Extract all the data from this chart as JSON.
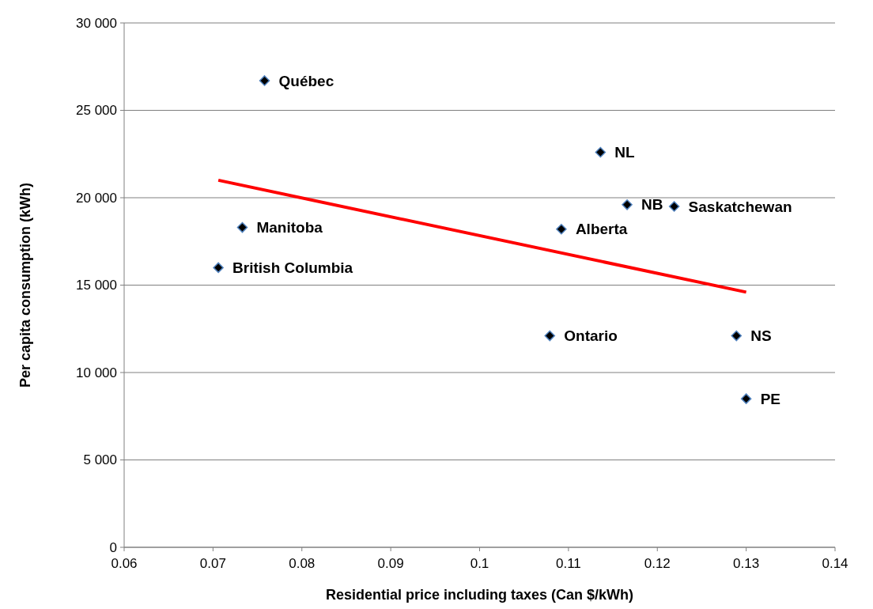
{
  "chart_data": {
    "type": "scatter",
    "xlabel": "Residential price including taxes (Can $/kWh)",
    "ylabel": "Per capita consumption (kWh)",
    "xlim": [
      0.06,
      0.14
    ],
    "xticks": [
      0.06,
      0.07,
      0.08,
      0.09,
      {
        "value": 0.1,
        "label": "0.1"
      },
      0.11,
      0.12,
      0.13,
      0.14
    ],
    "ylim": [
      0,
      30000
    ],
    "yticks": [
      {
        "value": 0,
        "label": "0"
      },
      {
        "value": 5000,
        "label": "5 000"
      },
      {
        "value": 10000,
        "label": "10 000"
      },
      {
        "value": 15000,
        "label": "15 000"
      },
      {
        "value": 20000,
        "label": "20 000"
      },
      {
        "value": 25000,
        "label": "25 000"
      },
      {
        "value": 30000,
        "label": "30 000"
      }
    ],
    "grid": "y",
    "marker": "diamond",
    "series": [
      {
        "color": "#000000",
        "x": [
          0.0758,
          0.1136,
          0.1166,
          0.1219,
          0.0733,
          0.1092,
          0.0706,
          0.1079,
          0.1289,
          0.13
        ],
        "values": [
          26700,
          22600,
          19600,
          19500,
          18300,
          18200,
          16000,
          12100,
          12100,
          8500
        ]
      },
      {
        "type": "line",
        "color": "#ff0000",
        "marker": "none",
        "x": [
          0.0706,
          0.13
        ],
        "values": [
          21000,
          14600
        ]
      }
    ],
    "annotations": [
      {
        "text": "Québec",
        "x": 0.0758,
        "y": 26700
      },
      {
        "text": "NL",
        "x": 0.1136,
        "y": 22600
      },
      {
        "text": "NB",
        "x": 0.1166,
        "y": 19600
      },
      {
        "text": "Saskatchewan",
        "x": 0.1219,
        "y": 19500
      },
      {
        "text": "Manitoba",
        "x": 0.0733,
        "y": 18300
      },
      {
        "text": "Alberta",
        "x": 0.1092,
        "y": 18200
      },
      {
        "text": "British Columbia",
        "x": 0.0706,
        "y": 16000
      },
      {
        "text": "Ontario",
        "x": 0.1079,
        "y": 12100
      },
      {
        "text": "NS",
        "x": 0.1289,
        "y": 12100
      },
      {
        "text": "PE",
        "x": 0.13,
        "y": 8500
      }
    ]
  }
}
